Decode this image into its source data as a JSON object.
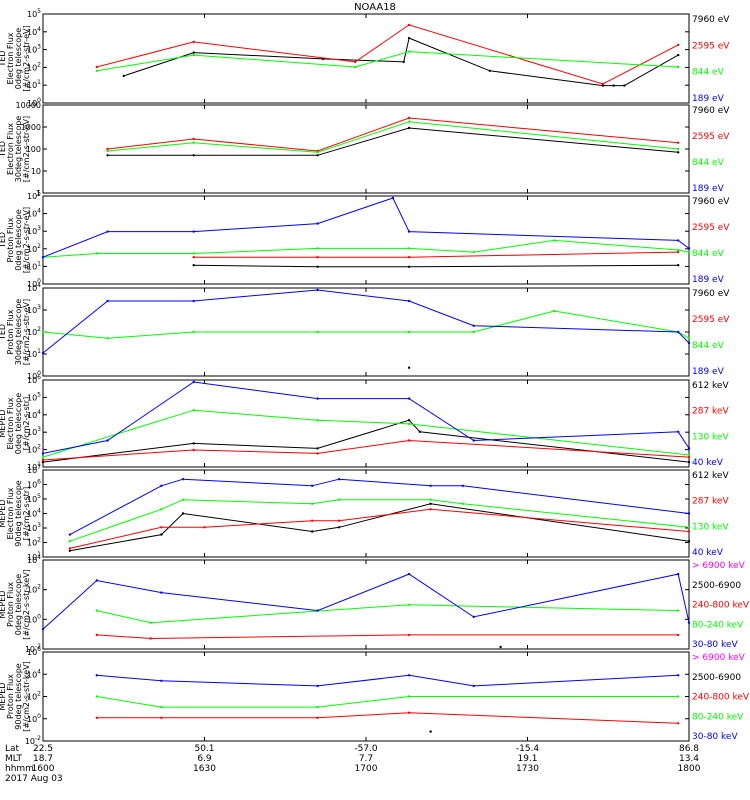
{
  "title": "NOAA18",
  "colors": {
    "black": "#000000",
    "red": "#ff0000",
    "green": "#00ff00",
    "blue": "#0000ff",
    "magenta": "#ff00ff"
  },
  "panels": [
    {
      "ylabel": [
        "TED",
        "Electron Flux",
        "0deg telescope",
        "[#/cm2-s-str-eV]"
      ],
      "ticks": [
        "10^0",
        "10^1",
        "10^2",
        "10^3",
        "10^4",
        "10^5"
      ],
      "legend": [
        [
          "7960 eV",
          "black"
        ],
        [
          "2595 eV",
          "red"
        ],
        [
          "844 eV",
          "green"
        ],
        [
          "189 eV",
          "blue"
        ]
      ]
    },
    {
      "ylabel": [
        "TED",
        "Electron Flux",
        "30deg telescope",
        "[#/cm2-s-str-eV]"
      ],
      "ticks": [
        "1",
        "10",
        "100",
        "1000",
        "10000"
      ],
      "legend": [
        [
          "7960 eV",
          "black"
        ],
        [
          "2595 eV",
          "red"
        ],
        [
          "844 eV",
          "green"
        ],
        [
          "189 eV",
          "blue"
        ]
      ]
    },
    {
      "ylabel": [
        "TED",
        "Proton Flux",
        "0deg telescope",
        "[#/cm2-s-str-eV]"
      ],
      "ticks": [
        "10^0",
        "10^1",
        "10^2",
        "10^3",
        "10^4",
        "10^5"
      ],
      "legend": [
        [
          "7960 eV",
          "black"
        ],
        [
          "2595 eV",
          "red"
        ],
        [
          "844 eV",
          "green"
        ],
        [
          "189 eV",
          "blue"
        ]
      ]
    },
    {
      "ylabel": [
        "TED",
        "Proton Flux",
        "30deg telescope",
        "[#/cm2-s-str-eV]"
      ],
      "ticks": [
        "10^0",
        "10^1",
        "10^2",
        "10^3",
        "10^4"
      ],
      "legend": [
        [
          "7960 eV",
          "black"
        ],
        [
          "2595 eV",
          "red"
        ],
        [
          "844 eV",
          "green"
        ],
        [
          "189 eV",
          "blue"
        ]
      ]
    },
    {
      "ylabel": [
        "MEPED",
        "Electron Flux",
        "0deg telescope",
        "[#/cm2-s-str]"
      ],
      "ticks": [
        "10^1",
        "10^2",
        "10^3",
        "10^4",
        "10^5",
        "10^6"
      ],
      "legend": [
        [
          "612 keV",
          "black"
        ],
        [
          "287 keV",
          "red"
        ],
        [
          "130 keV",
          "green"
        ],
        [
          "40 keV",
          "blue"
        ]
      ]
    },
    {
      "ylabel": [
        "MEPED",
        "Electron Flux",
        "90deg telescope",
        "[#/cm2-s-str]"
      ],
      "ticks": [
        "10^1",
        "10^2",
        "10^3",
        "10^4",
        "10^5",
        "10^6",
        "10^7"
      ],
      "legend": [
        [
          "612 keV",
          "black"
        ],
        [
          "287 keV",
          "red"
        ],
        [
          "130 keV",
          "green"
        ],
        [
          "40 keV",
          "blue"
        ]
      ]
    },
    {
      "ylabel": [
        "MEPED",
        "Proton Flux",
        "0deg telescope",
        "[#/cm2-s-str-keV]"
      ],
      "ticks": [
        "10^-2",
        "10^0",
        "10^2",
        "10^4"
      ],
      "legend": [
        [
          "> 6900 keV",
          "magenta"
        ],
        [
          "2500-6900",
          "black"
        ],
        [
          "240-800 keV",
          "red"
        ],
        [
          "80-240 keV",
          "green"
        ],
        [
          "30-80 keV",
          "blue"
        ]
      ]
    },
    {
      "ylabel": [
        "MEPED",
        "Proton Flux",
        "90deg telescope",
        "[#/cm2-s-str-keV]"
      ],
      "ticks": [
        "10^-2",
        "10^0",
        "10^2",
        "10^4",
        "10^6"
      ],
      "legend": [
        [
          "> 6900 keV",
          "magenta"
        ],
        [
          "2500-6900",
          "black"
        ],
        [
          "240-800 keV",
          "red"
        ],
        [
          "80-240 keV",
          "green"
        ],
        [
          "30-80 keV",
          "blue"
        ]
      ]
    }
  ],
  "xaxis": {
    "row_labels": [
      "Lat",
      "MLT",
      "hhmm",
      "2017 Aug 03"
    ],
    "columns": [
      {
        "lat": "22.5",
        "mlt": "18.7",
        "hhmm": "1600"
      },
      {
        "lat": "50.1",
        "mlt": "6.9",
        "hhmm": "1630"
      },
      {
        "lat": "-57.0",
        "mlt": "7.7",
        "hhmm": "1700"
      },
      {
        "lat": "-15.4",
        "mlt": "19.1",
        "hhmm": "1730"
      },
      {
        "lat": "86.8",
        "mlt": "13.4",
        "hhmm": "1800"
      }
    ]
  },
  "chart_data": {
    "type": "line",
    "title": "NOAA18",
    "x": {
      "unit": "hhmm",
      "range": [
        "1600",
        "1800"
      ],
      "ticks": [
        "1600",
        "1630",
        "1700",
        "1730",
        "1800"
      ]
    },
    "yscale": "log",
    "grid": false,
    "legend_position": "right of each panel",
    "panels": [
      {
        "name": "TED Electron Flux 0deg telescope",
        "ylim": [
          1,
          100000
        ],
        "series": [
          {
            "name": "7960 eV",
            "x": [
              1615,
              1628,
              1652,
              1707,
              1708,
              1723,
              1744,
              1746,
              1748,
              1758
            ],
            "y": [
              30,
              700,
              300,
              200,
              5000,
              60,
              8,
              8,
              8,
              500
            ]
          },
          {
            "name": "2595 eV",
            "x": [
              1610,
              1628,
              1658,
              1708,
              1744,
              1758
            ],
            "y": [
              100,
              3000,
              200,
              30000,
              10,
              2000
            ]
          },
          {
            "name": "844 eV",
            "x": [
              1610,
              1628,
              1658,
              1708,
              1758
            ],
            "y": [
              60,
              500,
              100,
              800,
              100
            ]
          },
          {
            "name": "189 eV",
            "x": [],
            "y": []
          }
        ]
      },
      {
        "name": "TED Electron Flux 30deg telescope",
        "ylim": [
          1,
          10000
        ],
        "series": [
          {
            "name": "7960 eV",
            "x": [
              1612,
              1628,
              1651,
              1708,
              1758
            ],
            "y": [
              50,
              50,
              50,
              1000,
              70
            ]
          },
          {
            "name": "2595 eV",
            "x": [
              1612,
              1628,
              1651,
              1708,
              1758
            ],
            "y": [
              100,
              300,
              80,
              3000,
              200
            ]
          },
          {
            "name": "844 eV",
            "x": [
              1612,
              1628,
              1651,
              1708,
              1758
            ],
            "y": [
              80,
              200,
              70,
              2000,
              100
            ]
          },
          {
            "name": "189 eV",
            "x": [],
            "y": []
          }
        ]
      },
      {
        "name": "TED Proton Flux 0deg telescope",
        "ylim": [
          1,
          100000
        ],
        "series": [
          {
            "name": "7960 eV",
            "x": [
              1628,
              1651,
              1708,
              1758
            ],
            "y": [
              10,
              8,
              8,
              10
            ]
          },
          {
            "name": "2595 eV",
            "x": [
              1628,
              1651,
              1708,
              1758
            ],
            "y": [
              30,
              30,
              30,
              60
            ]
          },
          {
            "name": "844 eV",
            "x": [
              1600,
              1610,
              1628,
              1651,
              1708,
              1720,
              1735,
              1758,
              1800
            ],
            "y": [
              30,
              50,
              50,
              100,
              100,
              60,
              300,
              80,
              60
            ]
          },
          {
            "name": "189 eV",
            "x": [
              1600,
              1612,
              1628,
              1651,
              1705,
              1708,
              1758,
              1800
            ],
            "y": [
              30,
              1000,
              1000,
              3000,
              100000,
              1000,
              300,
              100
            ]
          }
        ]
      },
      {
        "name": "TED Proton Flux 30deg telescope",
        "ylim": [
          1,
          10000
        ],
        "series": [
          {
            "name": "7960 eV",
            "x": [
              1708
            ],
            "y": [
              2
            ]
          },
          {
            "name": "2595 eV",
            "x": [],
            "y": []
          },
          {
            "name": "844 eV",
            "x": [
              1600,
              1612,
              1628,
              1651,
              1708,
              1720,
              1735,
              1758,
              1800
            ],
            "y": [
              100,
              50,
              100,
              100,
              100,
              100,
              1000,
              100,
              50
            ]
          },
          {
            "name": "189 eV",
            "x": [
              1600,
              1612,
              1628,
              1651,
              1708,
              1720,
              1758,
              1800
            ],
            "y": [
              10,
              3000,
              3000,
              10000,
              3000,
              200,
              100,
              30
            ]
          }
        ]
      },
      {
        "name": "MEPED Electron Flux 0deg telescope",
        "ylim": [
          10,
          1000000
        ],
        "series": [
          {
            "name": "612 keV",
            "x": [
              1600,
              1628,
              1651,
              1708,
              1710,
              1800
            ],
            "y": [
              15,
              200,
              100,
              5000,
              1000,
              15
            ]
          },
          {
            "name": "287 keV",
            "x": [
              1600,
              1628,
              1651,
              1708,
              1800
            ],
            "y": [
              20,
              80,
              50,
              300,
              30
            ]
          },
          {
            "name": "130 keV",
            "x": [
              1600,
              1628,
              1651,
              1708,
              1800
            ],
            "y": [
              30,
              20000,
              5000,
              3000,
              40
            ]
          },
          {
            "name": "40 keV",
            "x": [
              1600,
              1612,
              1628,
              1651,
              1708,
              1720,
              1758,
              1800
            ],
            "y": [
              50,
              300,
              1000000,
              100000,
              100000,
              300,
              1000,
              100
            ]
          }
        ]
      },
      {
        "name": "MEPED Electron Flux 90deg telescope",
        "ylim": [
          10,
          10000000
        ],
        "series": [
          {
            "name": "612 keV",
            "x": [
              1605,
              1622,
              1626,
              1650,
              1655,
              1712,
              1800
            ],
            "y": [
              20,
              300,
              10000,
              500,
              1000,
              50000,
              100
            ]
          },
          {
            "name": "287 keV",
            "x": [
              1605,
              1622,
              1630,
              1650,
              1655,
              1712,
              1800
            ],
            "y": [
              30,
              1000,
              1000,
              3000,
              3000,
              20000,
              500
            ]
          },
          {
            "name": "130 keV",
            "x": [
              1605,
              1622,
              1626,
              1650,
              1655,
              1712,
              1718,
              1800
            ],
            "y": [
              100,
              20000,
              100000,
              50000,
              100000,
              100000,
              50000,
              1000
            ]
          },
          {
            "name": "40 keV",
            "x": [
              1605,
              1622,
              1626,
              1650,
              1655,
              1712,
              1718,
              1800
            ],
            "y": [
              300,
              1000000,
              3000000,
              1000000,
              3000000,
              1000000,
              1000000,
              10000
            ]
          }
        ]
      },
      {
        "name": "MEPED Proton Flux 0deg telescope",
        "ylim": [
          0.01,
          100000
        ],
        "series": [
          {
            "name": "> 6900 keV",
            "x": [],
            "y": []
          },
          {
            "name": "2500-6900",
            "x": [
              1725
            ],
            "y": [
              0.01
            ]
          },
          {
            "name": "240-800 keV",
            "x": [
              1610,
              1620,
              1708,
              1758
            ],
            "y": [
              0.1,
              0.05,
              0.1,
              0.1
            ]
          },
          {
            "name": "80-240 keV",
            "x": [
              1610,
              1620,
              1708,
              1758
            ],
            "y": [
              10,
              1,
              30,
              10
            ]
          },
          {
            "name": "30-80 keV",
            "x": [
              1600,
              1610,
              1622,
              1651,
              1708,
              1720,
              1758,
              1800
            ],
            "y": [
              0.3,
              3000,
              300,
              10,
              10000,
              3,
              10000,
              1
            ]
          }
        ]
      },
      {
        "name": "MEPED Proton Flux 90deg telescope",
        "ylim": [
          0.01,
          1000000
        ],
        "series": [
          {
            "name": "> 6900 keV",
            "x": [],
            "y": []
          },
          {
            "name": "2500-6900",
            "x": [
              1712
            ],
            "y": [
              0.05
            ]
          },
          {
            "name": "240-800 keV",
            "x": [
              1610,
              1622,
              1651,
              1708,
              1758
            ],
            "y": [
              1,
              1,
              1,
              3,
              0.3
            ]
          },
          {
            "name": "80-240 keV",
            "x": [
              1610,
              1622,
              1651,
              1708,
              1758
            ],
            "y": [
              100,
              10,
              10,
              100,
              100
            ]
          },
          {
            "name": "30-80 keV",
            "x": [
              1610,
              1622,
              1651,
              1708,
              1720,
              1758
            ],
            "y": [
              10000,
              3000,
              1000,
              10000,
              1000,
              10000
            ]
          }
        ]
      }
    ]
  }
}
